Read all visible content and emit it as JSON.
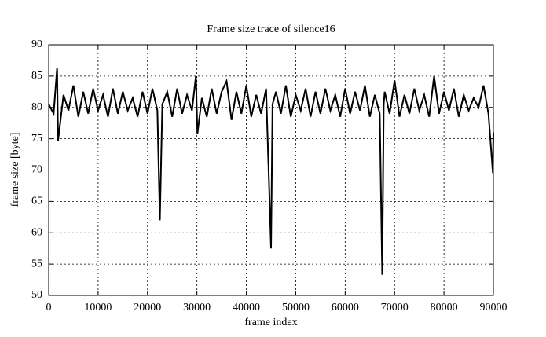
{
  "chart_data": {
    "type": "line",
    "title": "Frame size trace of silence16",
    "x_label": "frame index",
    "y_label": "frame size [byte]",
    "x": [
      0,
      1000,
      1700,
      1900,
      3000,
      4000,
      5000,
      6000,
      7000,
      8000,
      9000,
      10000,
      11000,
      12000,
      13000,
      14000,
      15000,
      16000,
      17000,
      18000,
      19000,
      20000,
      21000,
      22000,
      22500,
      23000,
      24000,
      25000,
      26000,
      27000,
      28000,
      29000,
      29800,
      30100,
      31000,
      32000,
      33000,
      34000,
      35000,
      36000,
      37000,
      38000,
      39000,
      40000,
      41000,
      42000,
      43000,
      44000,
      45000,
      45300,
      46000,
      47000,
      48000,
      49000,
      50000,
      51000,
      52000,
      53000,
      54000,
      55000,
      56000,
      57000,
      58000,
      59000,
      60000,
      61000,
      62000,
      63000,
      64000,
      65000,
      66000,
      67000,
      67500,
      67800,
      68000,
      69000,
      70000,
      71000,
      72000,
      73000,
      74000,
      75000,
      76000,
      77000,
      78000,
      79000,
      80000,
      81000,
      82000,
      83000,
      84000,
      85000,
      86000,
      87000,
      88000,
      89000,
      89900,
      90000
    ],
    "series": [
      {
        "name": "frame size",
        "color": "#000000",
        "values": [
          80.5,
          79,
          86.3,
          74.7,
          82,
          79.5,
          83.5,
          78.5,
          82.5,
          79,
          83,
          79.5,
          82,
          78.5,
          83,
          79,
          82.5,
          79.5,
          81.5,
          78.5,
          82.5,
          79,
          83,
          79.5,
          62,
          80.5,
          82.5,
          78.5,
          83,
          79,
          82,
          79.5,
          85,
          75.8,
          81.5,
          78.5,
          83,
          79,
          82.5,
          84.2,
          78,
          82.5,
          79,
          83.5,
          78.5,
          82,
          79,
          83,
          57.5,
          80.5,
          82.5,
          79,
          83.5,
          78.5,
          82,
          79.5,
          83,
          78.5,
          82.5,
          79,
          83,
          79.5,
          82,
          78.5,
          83,
          79,
          82.5,
          79.5,
          83.5,
          78.5,
          82,
          79,
          53.3,
          80.5,
          82.5,
          79,
          84.3,
          78.5,
          82,
          79,
          83,
          79.5,
          82,
          78.5,
          85,
          79,
          82.5,
          79.5,
          83,
          78.5,
          82,
          79.5,
          81.5,
          80,
          83.5,
          79,
          69.5,
          76
        ]
      }
    ],
    "xlim": [
      0,
      90000
    ],
    "ylim": [
      50,
      90
    ],
    "xticks": [
      0,
      10000,
      20000,
      30000,
      40000,
      50000,
      60000,
      70000,
      80000,
      90000
    ],
    "yticks": [
      50,
      55,
      60,
      65,
      70,
      75,
      80,
      85,
      90
    ],
    "grid": true
  }
}
